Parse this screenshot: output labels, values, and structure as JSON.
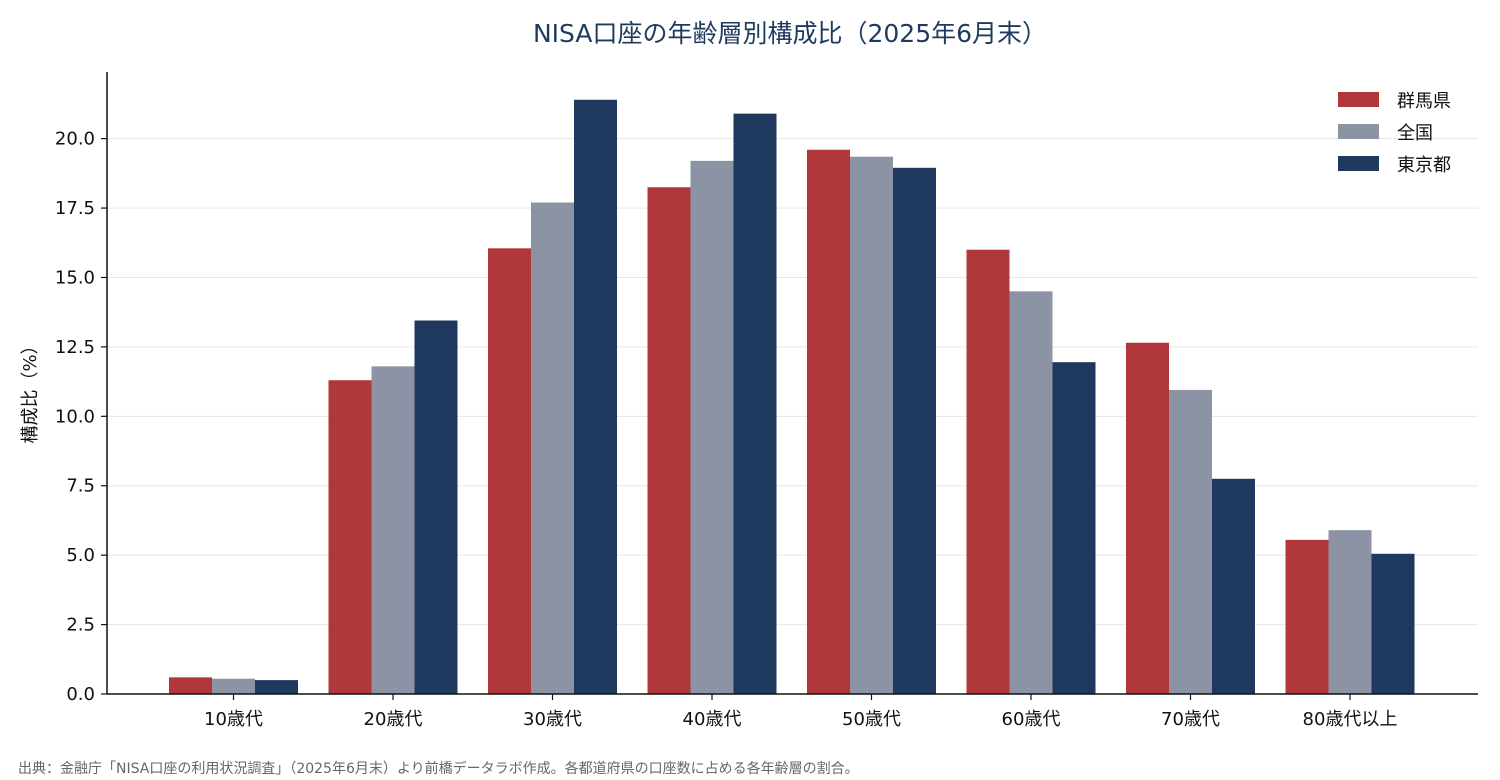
{
  "chart_data": {
    "type": "bar",
    "title": "NISA口座の年齢層別構成比（2025年6月末）",
    "xlabel": "",
    "ylabel": "構成比（%）",
    "ylim": [
      0,
      22.4
    ],
    "yticks": [
      "0.0",
      "2.5",
      "5.0",
      "7.5",
      "10.0",
      "12.5",
      "15.0",
      "17.5",
      "20.0"
    ],
    "yticks_values": [
      0,
      2.5,
      5,
      7.5,
      10,
      12.5,
      15,
      17.5,
      20
    ],
    "grid": "horizontal",
    "legend_position": "top-right",
    "categories": [
      "10歳代",
      "20歳代",
      "30歳代",
      "40歳代",
      "50歳代",
      "60歳代",
      "70歳代",
      "80歳代以上"
    ],
    "series": [
      {
        "name": "群馬県",
        "color": "#b0383a",
        "values": [
          0.6,
          11.3,
          16.05,
          18.25,
          19.6,
          16.0,
          12.65,
          5.55
        ]
      },
      {
        "name": "全国",
        "color": "#8c93a5",
        "values": [
          0.55,
          11.8,
          17.7,
          19.2,
          19.35,
          14.5,
          10.95,
          5.9
        ]
      },
      {
        "name": "東京都",
        "color": "#1f385d",
        "values": [
          0.5,
          13.45,
          21.4,
          20.9,
          18.95,
          11.95,
          7.75,
          5.05
        ]
      }
    ],
    "source": "出典：金融庁「NISA口座の利用状況調査」（2025年6月末）より前橋データラボ作成。各都道府県の口座数に占める各年齢層の割合。"
  }
}
